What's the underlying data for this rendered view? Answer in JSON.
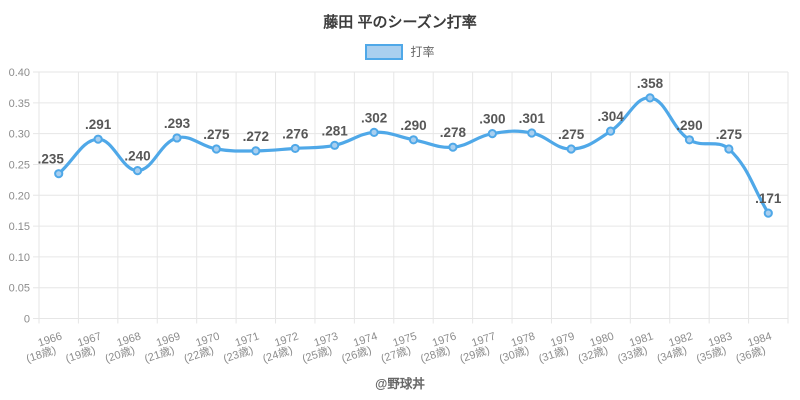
{
  "title": "藤田 平のシーズン打率",
  "legend": {
    "label": "打率"
  },
  "footer": "@野球丼",
  "colors": {
    "line": "#4FA8E8",
    "marker_fill": "#A9CFEF",
    "grid": "#e6e6e6",
    "axis_text": "#8c8c8c",
    "data_label": "#575757"
  },
  "chart_data": {
    "type": "line",
    "title": "藤田 平のシーズン打率",
    "series_name": "打率",
    "categories": [
      "1966",
      "1967",
      "1968",
      "1969",
      "1970",
      "1971",
      "1972",
      "1973",
      "1974",
      "1975",
      "1976",
      "1977",
      "1978",
      "1979",
      "1980",
      "1981",
      "1982",
      "1983",
      "1984"
    ],
    "age_labels": [
      "(18歳)",
      "(19歳)",
      "(20歳)",
      "(21歳)",
      "(22歳)",
      "(23歳)",
      "(24歳)",
      "(25歳)",
      "(26歳)",
      "(27歳)",
      "(28歳)",
      "(29歳)",
      "(30歳)",
      "(31歳)",
      "(32歳)",
      "(33歳)",
      "(34歳)",
      "(35歳)",
      "(36歳)"
    ],
    "values": [
      0.235,
      0.291,
      0.24,
      0.293,
      0.275,
      0.272,
      0.276,
      0.281,
      0.302,
      0.29,
      0.278,
      0.3,
      0.301,
      0.275,
      0.304,
      0.358,
      0.29,
      0.275,
      0.171
    ],
    "point_labels": [
      ".235",
      ".291",
      ".240",
      ".293",
      ".275",
      ".272",
      ".276",
      ".281",
      ".302",
      ".290",
      ".278",
      ".300",
      ".301",
      ".275",
      ".304",
      ".358",
      ".290",
      ".275",
      ".171"
    ],
    "xlabel": "",
    "ylabel": "",
    "ylim": [
      0,
      0.4
    ],
    "ytick_step": 0.05,
    "ytick_labels": [
      "0.40",
      "0.35",
      "0.30",
      "0.25",
      "0.20",
      "0.15",
      "0.10",
      "0.05",
      "0"
    ],
    "grid": true,
    "legend_position": "top",
    "smooth": true
  }
}
